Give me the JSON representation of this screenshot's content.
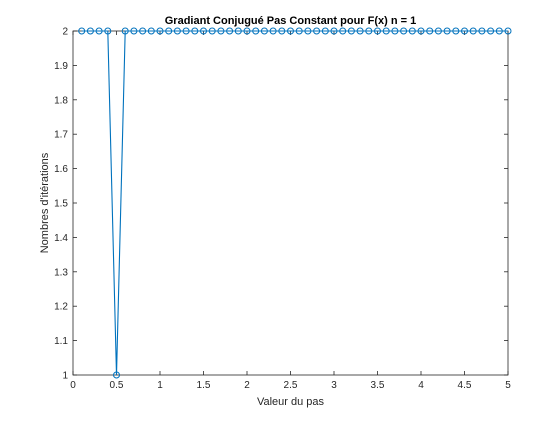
{
  "chart_data": {
    "type": "line",
    "title": "Gradiant Conjugué Pas Constant pour F(x) n = 1",
    "xlabel": "Valeur du pas",
    "ylabel": "Nombres d'itérations",
    "xlim": [
      0,
      5
    ],
    "ylim": [
      1,
      2
    ],
    "xticks": [
      "0",
      "0.5",
      "1",
      "1.5",
      "2",
      "2.5",
      "3",
      "3.5",
      "4",
      "4.5",
      "5"
    ],
    "yticks": [
      "1",
      "1.1",
      "1.2",
      "1.3",
      "1.4",
      "1.5",
      "1.6",
      "1.7",
      "1.8",
      "1.9",
      "2"
    ],
    "grid": false,
    "marker": "circle",
    "line_color": "#0072BD",
    "series": [
      {
        "x": [
          0.1,
          0.2,
          0.3,
          0.4,
          0.5,
          0.6,
          0.7,
          0.8,
          0.9,
          1.0,
          1.1,
          1.2,
          1.3,
          1.4,
          1.5,
          1.6,
          1.7,
          1.8,
          1.9,
          2.0,
          2.1,
          2.2,
          2.3,
          2.4,
          2.5,
          2.6,
          2.7,
          2.8,
          2.9,
          3.0,
          3.1,
          3.2,
          3.3,
          3.4,
          3.5,
          3.6,
          3.7,
          3.8,
          3.9,
          4.0,
          4.1,
          4.2,
          4.3,
          4.4,
          4.5,
          4.6,
          4.7,
          4.8,
          4.9,
          5.0
        ],
        "y": [
          2,
          2,
          2,
          2,
          1,
          2,
          2,
          2,
          2,
          2,
          2,
          2,
          2,
          2,
          2,
          2,
          2,
          2,
          2,
          2,
          2,
          2,
          2,
          2,
          2,
          2,
          2,
          2,
          2,
          2,
          2,
          2,
          2,
          2,
          2,
          2,
          2,
          2,
          2,
          2,
          2,
          2,
          2,
          2,
          2,
          2,
          2,
          2,
          2,
          2
        ]
      }
    ]
  }
}
